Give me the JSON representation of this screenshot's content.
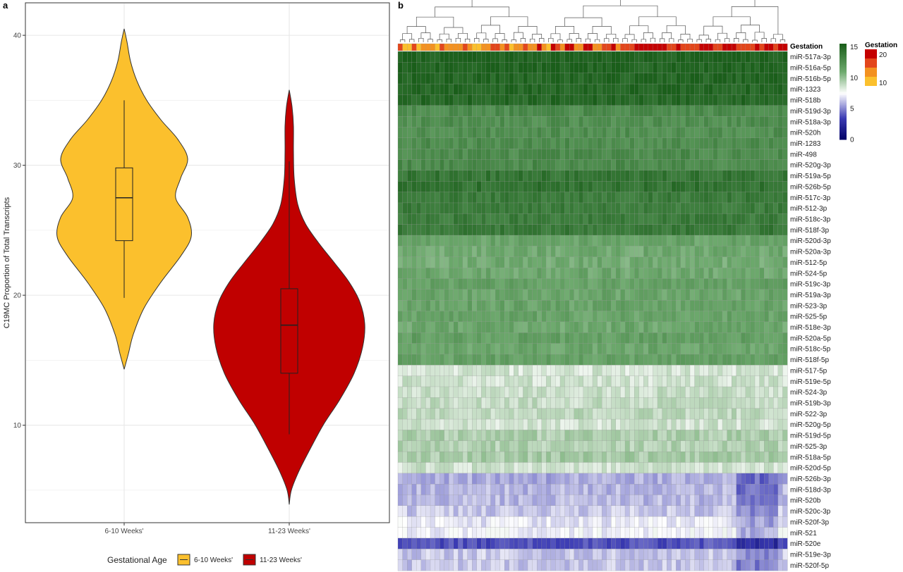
{
  "panels": {
    "a": "a",
    "b": "b"
  },
  "chart_data": [
    {
      "type": "violin",
      "ylabel": "C19MC Proportion of Total Transcripts",
      "ylim": [
        2.5,
        42.5
      ],
      "yticks": [
        10,
        20,
        30,
        40
      ],
      "grid": true,
      "categories": [
        "6-10 Weeks'",
        "11-23 Weeks'"
      ],
      "legend": {
        "title": "Gestational Age",
        "position": "bottom",
        "entries": [
          "6-10 Weeks'",
          "11-23 Weeks'"
        ]
      },
      "series": [
        {
          "name": "6-10 Weeks'",
          "color": "#FBC02D",
          "min": 14.3,
          "max": 40.5,
          "box": {
            "whisker_low": 19.8,
            "q1": 24.2,
            "median": 27.5,
            "q3": 29.8,
            "whisker_high": 35.0
          }
        },
        {
          "name": "11-23 Weeks'",
          "color": "#C00000",
          "min": 3.9,
          "max": 35.8,
          "box": {
            "whisker_low": 9.3,
            "q1": 14.0,
            "median": 17.7,
            "q3": 20.5,
            "whisker_high": 30.3
          }
        }
      ]
    },
    {
      "type": "heatmap",
      "annotation_label": "Gestation",
      "rows": [
        "miR-517a-3p",
        "miR-516a-5p",
        "miR-516b-5p",
        "miR-1323",
        "miR-518b",
        "miR-519d-3p",
        "miR-518a-3p",
        "miR-520h",
        "miR-1283",
        "miR-498",
        "miR-520g-3p",
        "miR-519a-5p",
        "miR-526b-5p",
        "miR-517c-3p",
        "miR-512-3p",
        "miR-518c-3p",
        "miR-518f-3p",
        "miR-520d-3p",
        "miR-520a-3p",
        "miR-512-5p",
        "miR-524-5p",
        "miR-519c-3p",
        "miR-519a-3p",
        "miR-523-3p",
        "miR-525-5p",
        "miR-518e-3p",
        "miR-520a-5p",
        "miR-518c-5p",
        "miR-518f-5p",
        "miR-517-5p",
        "miR-519e-5p",
        "miR-524-3p",
        "miR-519b-3p",
        "miR-522-3p",
        "miR-520g-5p",
        "miR-519d-5p",
        "miR-525-3p",
        "miR-518a-5p",
        "miR-520d-5p",
        "miR-526b-3p",
        "miR-518d-3p",
        "miR-520b",
        "miR-520c-3p",
        "miR-520f-3p",
        "miR-521",
        "miR-520e",
        "miR-519e-3p",
        "miR-520f-5p"
      ],
      "row_levels": [
        15.3,
        15.2,
        15.1,
        15.0,
        14.9,
        12.8,
        12.6,
        12.6,
        12.7,
        12.8,
        12.9,
        14.1,
        14.3,
        13.8,
        13.7,
        13.7,
        13.9,
        11.4,
        11.1,
        11.0,
        11.2,
        11.5,
        11.3,
        11.4,
        11.4,
        11.2,
        11.6,
        11.3,
        11.5,
        8.5,
        8.6,
        8.8,
        8.9,
        9.0,
        8.6,
        9.4,
        9.3,
        9.6,
        8.6,
        5.8,
        6.0,
        6.1,
        6.4,
        7.0,
        7.3,
        3.9,
        6.4,
        6.3
      ],
      "column_count": 84,
      "color_scale": {
        "title": "",
        "ticks": [
          0,
          5,
          10,
          15
        ],
        "low": "#000066",
        "mid": "#ffffff",
        "high": "#1a5e1a"
      },
      "gestation_legend": {
        "title": "Gestation",
        "ticks": [
          20,
          10
        ],
        "colors": [
          "#C40000",
          "#E3461B",
          "#F39120",
          "#FBC02D"
        ]
      }
    }
  ]
}
